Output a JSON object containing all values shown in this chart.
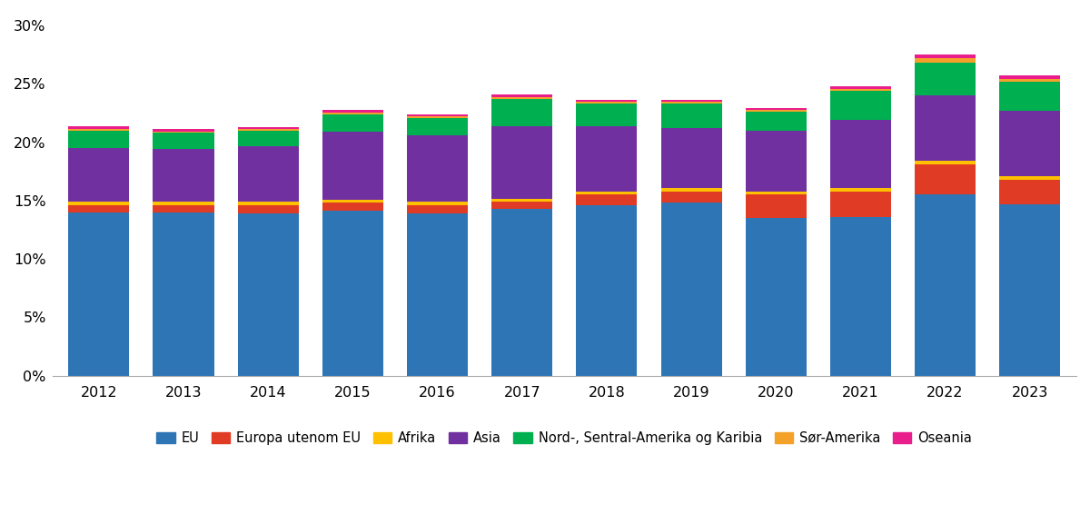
{
  "years": [
    2012,
    2013,
    2014,
    2015,
    2016,
    2017,
    2018,
    2019,
    2020,
    2021,
    2022,
    2023
  ],
  "series": {
    "EU": [
      14.0,
      14.0,
      13.9,
      14.1,
      13.9,
      14.3,
      14.6,
      14.8,
      13.5,
      13.6,
      15.5,
      14.7
    ],
    "Europa utenom EU": [
      0.6,
      0.6,
      0.7,
      0.7,
      0.7,
      0.6,
      0.9,
      1.0,
      2.0,
      2.2,
      2.6,
      2.1
    ],
    "Afrika": [
      0.28,
      0.28,
      0.28,
      0.28,
      0.28,
      0.28,
      0.28,
      0.28,
      0.28,
      0.28,
      0.28,
      0.28
    ],
    "Asia": [
      4.6,
      4.5,
      4.8,
      5.8,
      5.7,
      6.2,
      5.6,
      5.1,
      5.2,
      5.8,
      5.6,
      5.6
    ],
    "Nord-, Sentral-Amerika og Karibia": [
      1.5,
      1.4,
      1.3,
      1.5,
      1.5,
      2.3,
      1.9,
      2.1,
      1.6,
      2.5,
      2.8,
      2.5
    ],
    "Sør-Amerika": [
      0.18,
      0.15,
      0.15,
      0.18,
      0.15,
      0.18,
      0.18,
      0.18,
      0.18,
      0.18,
      0.42,
      0.22
    ],
    "Oseania": [
      0.22,
      0.18,
      0.18,
      0.18,
      0.18,
      0.22,
      0.18,
      0.18,
      0.18,
      0.22,
      0.32,
      0.28
    ]
  },
  "colors": {
    "EU": "#2e75b6",
    "Europa utenom EU": "#e03b24",
    "Afrika": "#ffc000",
    "Asia": "#7030a0",
    "Nord-, Sentral-Amerika og Karibia": "#00b050",
    "Sør-Amerika": "#f4a12a",
    "Oseania": "#e91e8c"
  },
  "yticks": [
    0,
    5,
    10,
    15,
    20,
    25,
    30
  ],
  "ylim": [
    0,
    31
  ],
  "bar_width": 0.72,
  "xlim_left": -0.55,
  "xlim_right": 11.55,
  "background_color": "#ffffff",
  "legend_fontsize": 10.5,
  "tick_fontsize": 11.5
}
